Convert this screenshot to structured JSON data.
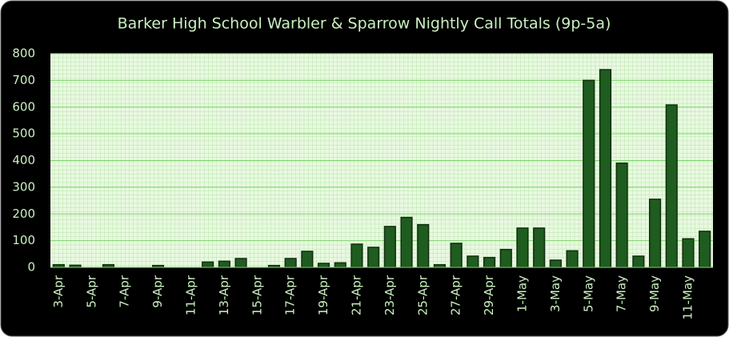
{
  "chart_data": {
    "type": "bar",
    "title": "Barker High School Warbler & Sparrow Nightly Call Totals (9p-5a)",
    "categories": [
      "3-Apr",
      null,
      "5-Apr",
      null,
      "7-Apr",
      null,
      "9-Apr",
      null,
      "11-Apr",
      null,
      "13-Apr",
      null,
      "15-Apr",
      null,
      "17-Apr",
      null,
      "19-Apr",
      null,
      "21-Apr",
      null,
      "23-Apr",
      null,
      "25-Apr",
      null,
      "27-Apr",
      null,
      "29-Apr",
      null,
      "1-May",
      null,
      "3-May",
      null,
      "5-May",
      null,
      "7-May",
      null,
      "9-May",
      null,
      "11-May",
      null
    ],
    "values": [
      10,
      8,
      0,
      10,
      0,
      0,
      7,
      0,
      0,
      20,
      23,
      33,
      0,
      7,
      33,
      60,
      15,
      17,
      87,
      75,
      153,
      187,
      160,
      10,
      90,
      42,
      37,
      67,
      147,
      147,
      27,
      62,
      700,
      740,
      390,
      42,
      255,
      608,
      107,
      135
    ],
    "color": "#1f5c1f",
    "ylim": [
      0,
      800
    ],
    "yticks": [
      0,
      100,
      200,
      300,
      400,
      500,
      600,
      700,
      800
    ],
    "grid": true
  }
}
